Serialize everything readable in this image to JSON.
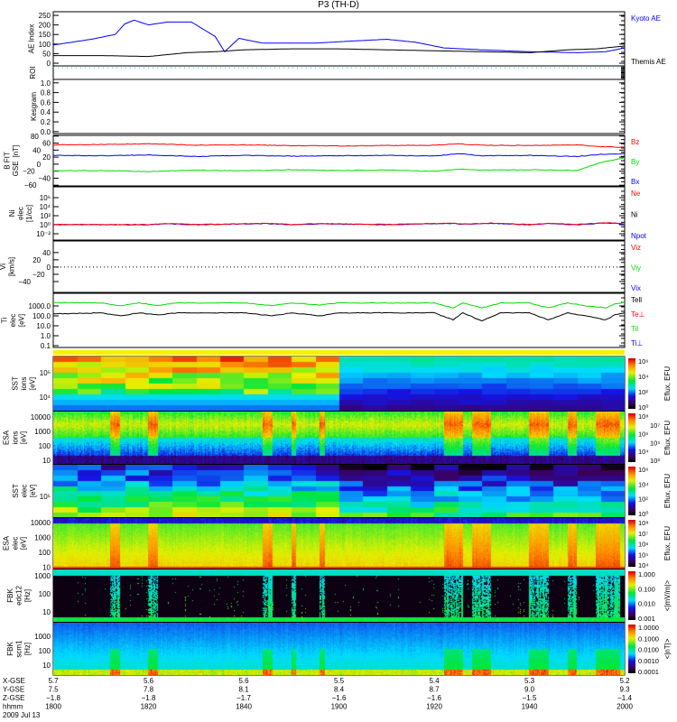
{
  "title": "P3 (TH-D)",
  "chart_data": {
    "type": "line",
    "title": "P3 (TH-D)",
    "x_units": "minutes after 18:00 UT",
    "xlim": [
      0,
      120
    ],
    "panels": [
      {
        "id": "ae",
        "ylabel": [
          "AE Index"
        ],
        "scale": "linear",
        "ylim": [
          -14,
          269
        ],
        "yticks": [
          {
            "v": 250,
            "label": "250"
          },
          {
            "v": 200,
            "label": "200"
          },
          {
            "v": 150,
            "label": "150"
          },
          {
            "v": 100,
            "label": "100"
          },
          {
            "v": 50,
            "label": "50"
          },
          {
            "v": 0,
            "label": "0"
          }
        ],
        "legend": [
          {
            "label": "Kyoto AE",
            "color": "#0000ff"
          },
          {
            "label": "Themis AE",
            "color": "#000000"
          }
        ],
        "series": [
          {
            "name": "Kyoto AE",
            "color": "#0000ff",
            "x": [
              0,
              8,
              13,
              15,
              17,
              20,
              24,
              29,
              34,
              36,
              39,
              44,
              55,
              62,
              70,
              76,
              82,
              90,
              100,
              110,
              116,
              120
            ],
            "y": [
              95,
              125,
              150,
              205,
              225,
              200,
              215,
              215,
              140,
              60,
              130,
              105,
              105,
              115,
              125,
              110,
              80,
              70,
              60,
              55,
              60,
              80
            ]
          },
          {
            "name": "Themis AE",
            "color": "#000000",
            "x": [
              0,
              10,
              20,
              24,
              28,
              34,
              40,
              50,
              60,
              70,
              80,
              90,
              100,
              108,
              114,
              120
            ],
            "y": [
              40,
              40,
              35,
              45,
              55,
              60,
              70,
              75,
              75,
              70,
              65,
              60,
              55,
              70,
              75,
              90
            ]
          }
        ]
      },
      {
        "id": "roi",
        "ylabel": [
          "ROI"
        ],
        "scale": "linear",
        "ylim": [
          0,
          1
        ],
        "yticks": [],
        "legend": [],
        "series": []
      },
      {
        "id": "kes",
        "ylabel": [
          "Kesgram"
        ],
        "scale": "linear",
        "ylim": [
          -0.04,
          1.07
        ],
        "yticks": [
          {
            "v": 1,
            "label": "1.0"
          },
          {
            "v": 0.8,
            "label": "0.8"
          },
          {
            "v": 0.6,
            "label": "0.6"
          },
          {
            "v": 0.4,
            "label": "0.4"
          },
          {
            "v": 0.2,
            "label": "0.2"
          },
          {
            "v": 0,
            "label": "0.0"
          }
        ],
        "legend": [],
        "series": []
      },
      {
        "id": "bfit",
        "ylabel": [
          "B FIT",
          "GSE",
          "[nT]"
        ],
        "scale": "linear",
        "ylim": [
          -62,
          82
        ],
        "yticks": [
          {
            "v": 80,
            "label": "80"
          },
          {
            "v": 60,
            "label": "60"
          },
          {
            "v": 40,
            "label": "40"
          },
          {
            "v": 20,
            "label": "20"
          },
          {
            "v": 0,
            "label": "0"
          },
          {
            "v": -20,
            "label": "−20"
          },
          {
            "v": -40,
            "label": "−40"
          },
          {
            "v": -60,
            "label": "−60"
          }
        ],
        "legend": [
          {
            "label": "Bz",
            "color": "#ff0000"
          },
          {
            "label": "By",
            "color": "#00dd00"
          },
          {
            "label": "Bx",
            "color": "#0000ff"
          }
        ],
        "series": [
          {
            "name": "Bz",
            "color": "#ff0000",
            "x": [
              0,
              10,
              20,
              30,
              40,
              50,
              60,
              70,
              80,
              85,
              90,
              100,
              110,
              115,
              120
            ],
            "y": [
              55,
              56,
              58,
              54,
              55,
              53,
              52,
              53,
              54,
              58,
              54,
              53,
              55,
              50,
              48
            ]
          },
          {
            "name": "By",
            "color": "#00dd00",
            "x": [
              0,
              10,
              20,
              30,
              40,
              50,
              60,
              70,
              80,
              85,
              90,
              100,
              110,
              115,
              120
            ],
            "y": [
              -19,
              -18,
              -21,
              -17,
              -19,
              -16,
              -18,
              -17,
              -20,
              -14,
              -17,
              -16,
              -18,
              5,
              18
            ]
          },
          {
            "name": "Bx",
            "color": "#0000ff",
            "x": [
              0,
              10,
              20,
              30,
              40,
              50,
              60,
              70,
              80,
              85,
              90,
              100,
              110,
              115,
              120
            ],
            "y": [
              25,
              24,
              26,
              22,
              25,
              23,
              24,
              25,
              23,
              30,
              24,
              25,
              22,
              28,
              30
            ]
          }
        ]
      },
      {
        "id": "ni",
        "ylabel": [
          "Ni",
          "elec",
          "[1/cc]"
        ],
        "scale": "log",
        "ylim": [
          -3.4,
          8.4
        ],
        "yticks": [
          {
            "v": 6,
            "label": "10⁶"
          },
          {
            "v": 4,
            "label": "10⁴"
          },
          {
            "v": 2,
            "label": "10²"
          },
          {
            "v": 0,
            "label": "10⁰"
          },
          {
            "v": -2,
            "label": "10⁻²"
          }
        ],
        "legend": [
          {
            "label": "Ne",
            "color": "#ff0000"
          },
          {
            "label": "Ni",
            "color": "#000000"
          },
          {
            "label": "Npot",
            "color": "#0000ff"
          }
        ],
        "series": [
          {
            "name": "Npot",
            "color": "#0000ff",
            "x": [
              0,
              20,
              24,
              30,
              45,
              50,
              56,
              70,
              84,
              86,
              92,
              100,
              104,
              110,
              116,
              118,
              120
            ],
            "y": [
              0,
              0,
              0.2,
              0,
              0.25,
              0,
              0.2,
              0,
              0.3,
              0.1,
              0.3,
              0,
              0.25,
              0,
              0.4,
              0.3,
              0.1
            ]
          },
          {
            "name": "Ne",
            "color": "#ff0000",
            "x": [
              0,
              20,
              24,
              30,
              45,
              50,
              56,
              70,
              84,
              86,
              92,
              100,
              104,
              110,
              116,
              118,
              120
            ],
            "y": [
              0.05,
              0.05,
              0.25,
              0.05,
              0.3,
              0.05,
              0.25,
              0.05,
              0.35,
              0.15,
              0.35,
              0.05,
              0.3,
              0.05,
              0.45,
              0.35,
              0.15
            ]
          }
        ]
      },
      {
        "id": "vi",
        "ylabel": [
          "Vi",
          "[km/s]"
        ],
        "scale": "linear",
        "ylim": [
          -70,
          72
        ],
        "yticks": [
          {
            "v": 40,
            "label": "40"
          },
          {
            "v": 20,
            "label": "20"
          },
          {
            "v": 0,
            "label": "0"
          },
          {
            "v": -20,
            "label": "−20"
          },
          {
            "v": -40,
            "label": "−40"
          }
        ],
        "legend": [
          {
            "label": "Viz",
            "color": "#ff0000"
          },
          {
            "label": "Viy",
            "color": "#00dd00"
          },
          {
            "label": "Vix",
            "color": "#0000ff"
          }
        ],
        "series": []
      },
      {
        "id": "ti",
        "ylabel": [
          "Ti",
          "elec",
          "[eV]"
        ],
        "scale": "log",
        "ylim": [
          -1.18,
          4.27
        ],
        "yticks": [
          {
            "v": 3,
            "label": "1000.0"
          },
          {
            "v": 2,
            "label": "100.0"
          },
          {
            "v": 1,
            "label": "10.0"
          },
          {
            "v": 0,
            "label": "1.0"
          },
          {
            "v": -1,
            "label": "0.1"
          }
        ],
        "legend": [
          {
            "label": "Tell",
            "color": "#000000"
          },
          {
            "label": "Te⊥",
            "color": "#ff0000"
          },
          {
            "label": "Til",
            "color": "#00dd00"
          },
          {
            "label": "Ti⊥",
            "color": "#0000ff"
          }
        ],
        "series": [
          {
            "name": "Til",
            "color": "#00dd00",
            "x": [
              0,
              10,
              14,
              18,
              22,
              26,
              40,
              46,
              50,
              56,
              60,
              70,
              80,
              84,
              86,
              90,
              94,
              100,
              104,
              108,
              112,
              116,
              118,
              120
            ],
            "y": [
              3.35,
              3.3,
              3.0,
              3.3,
              3.05,
              3.3,
              3.3,
              3.05,
              3.3,
              3.1,
              3.3,
              3.3,
              3.3,
              2.8,
              3.3,
              2.8,
              3.3,
              3.3,
              2.8,
              3.3,
              3.0,
              2.8,
              3.2,
              3.35
            ]
          },
          {
            "name": "Tell",
            "color": "#000000",
            "x": [
              0,
              10,
              14,
              18,
              22,
              26,
              40,
              46,
              50,
              56,
              60,
              70,
              80,
              84,
              86,
              90,
              94,
              100,
              104,
              108,
              112,
              116,
              118,
              120
            ],
            "y": [
              2.2,
              2.3,
              2.0,
              2.3,
              2.1,
              2.3,
              2.3,
              2.0,
              2.3,
              2.0,
              2.3,
              2.3,
              2.3,
              1.6,
              2.3,
              1.5,
              2.3,
              2.3,
              1.6,
              2.3,
              2.0,
              1.6,
              2.1,
              2.3
            ]
          }
        ]
      }
    ],
    "spectrograms": [
      {
        "id": "sst_i",
        "ylabel": [
          "SST",
          "ions",
          "[eV]"
        ],
        "ylim_log": [
          3.44,
          5.67
        ],
        "yticks": [
          {
            "v": 5,
            "label": "10⁵"
          },
          {
            "v": 4,
            "label": "10⁴"
          }
        ],
        "colorbar": {
          "title": "Eflux, EFU",
          "labels": [
            "10⁶",
            "10⁴",
            "10²",
            "10⁰"
          ]
        }
      },
      {
        "id": "esa_i",
        "ylabel": [
          "ESA",
          "ions",
          "[eV]"
        ],
        "ylim_log": [
          0.75,
          4.375
        ],
        "yticks": [
          {
            "v": 4,
            "label": "10000"
          },
          {
            "v": 3,
            "label": "1000"
          },
          {
            "v": 2,
            "label": "100"
          },
          {
            "v": 1,
            "label": "10"
          }
        ],
        "colorbar": {
          "title": "Eflux, EFU",
          "labels": [
            "10⁸",
            "10⁷",
            "10⁶",
            "10⁵",
            "10⁴",
            "10³"
          ]
        }
      },
      {
        "id": "sst_e",
        "ylabel": [
          "SST",
          "elec",
          "[eV]"
        ],
        "ylim_log": [
          4.15,
          6.3
        ],
        "yticks": [
          {
            "v": 5,
            "label": "10⁵"
          }
        ],
        "colorbar": {
          "title": "Eflux, EFU",
          "labels": [
            "10⁶",
            "10⁴",
            "10²",
            "10⁰"
          ]
        }
      },
      {
        "id": "esa_e",
        "ylabel": [
          "ESA",
          "elec",
          "[eV]"
        ],
        "ylim_log": [
          0.9,
          4.3
        ],
        "yticks": [
          {
            "v": 4,
            "label": "10000"
          },
          {
            "v": 3,
            "label": "1000"
          },
          {
            "v": 2,
            "label": "100"
          },
          {
            "v": 1,
            "label": "10"
          }
        ],
        "colorbar": {
          "title": "Eflux, EFU",
          "labels": [
            "10⁸",
            "10⁷",
            "10⁶",
            "10⁵",
            "10⁴"
          ]
        }
      },
      {
        "id": "fbk_e",
        "ylabel": [
          "FBK",
          "edc12",
          "[Hz]"
        ],
        "ylim_log": [
          0.45,
          3.35
        ],
        "yticks": [
          {
            "v": 3,
            "label": "1000"
          },
          {
            "v": 2,
            "label": "100"
          },
          {
            "v": 1,
            "label": "10"
          }
        ],
        "colorbar": {
          "title": "<|mV/m|>",
          "labels": [
            "1.000",
            "0.100",
            "0.010",
            "0.001"
          ]
        }
      },
      {
        "id": "fbk_b",
        "ylabel": [
          "FBK",
          "scm1",
          "[Hz]"
        ],
        "ylim_log": [
          0.3,
          3.94
        ],
        "yticks": [
          {
            "v": 3,
            "label": "1000"
          },
          {
            "v": 2,
            "label": "100"
          },
          {
            "v": 1,
            "label": "10"
          }
        ],
        "colorbar": {
          "title": "<|nT|>",
          "labels": [
            "1.0000",
            "0.1000",
            "0.0100",
            "0.0010",
            "0.0001"
          ]
        }
      }
    ],
    "xaxis": {
      "tick_minutes": [
        0,
        20,
        40,
        60,
        80,
        100,
        120
      ],
      "rows": [
        {
          "label": "X-GSE",
          "values": [
            "5.7",
            "5.6",
            "5.6",
            "5.5",
            "5.4",
            "5.3",
            "5.2"
          ]
        },
        {
          "label": "Y-GSE",
          "values": [
            "7.5",
            "7.8",
            "8.1",
            "8.4",
            "8.7",
            "9.0",
            "9.3"
          ]
        },
        {
          "label": "Z-GSE",
          "values": [
            "−1.8",
            "−1.8",
            "−1.7",
            "−1.6",
            "−1.6",
            "−1.5",
            "−1.4"
          ]
        },
        {
          "label": "hhmm",
          "values": [
            "1800",
            "1820",
            "1840",
            "1900",
            "1920",
            "1940",
            "2000"
          ]
        }
      ],
      "date": "2009 Jul 13"
    }
  }
}
